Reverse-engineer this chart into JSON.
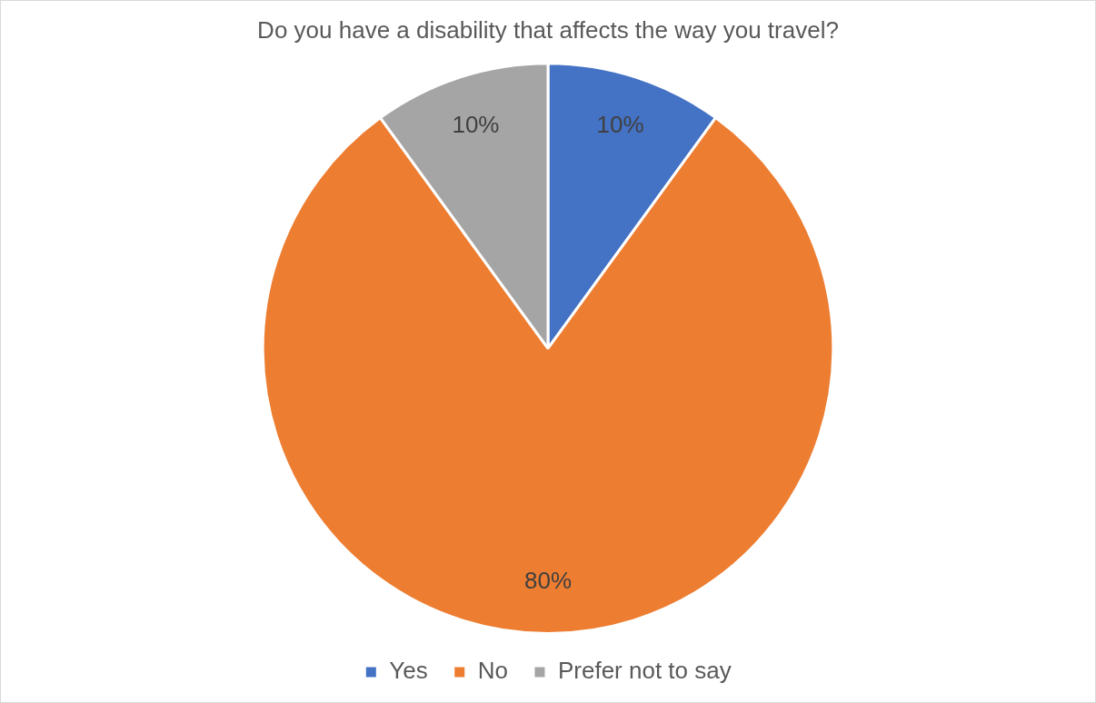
{
  "chart_data": {
    "type": "pie",
    "title": "Do you have a disability that affects the way you travel?",
    "categories": [
      "Yes",
      "No",
      "Prefer not to say"
    ],
    "values": [
      10,
      80,
      10
    ],
    "colors": [
      "#4472c4",
      "#ed7d31",
      "#a5a5a5"
    ],
    "value_labels": [
      "10%",
      "80%",
      "10%"
    ],
    "legend": "bottom"
  }
}
